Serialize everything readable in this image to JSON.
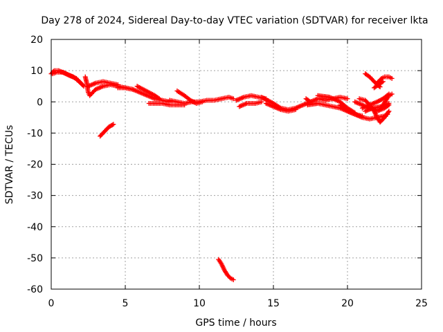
{
  "chart_data": {
    "type": "scatter",
    "title": "Day 278 of 2024, Sidereal Day-to-day VTEC variation (SDTVAR) for receiver lkta",
    "xlabel": "GPS time / hours",
    "ylabel": "SDTVAR / TECUs",
    "xlim": [
      0,
      25
    ],
    "ylim": [
      -60,
      20
    ],
    "xticks": [
      0,
      5,
      10,
      15,
      20,
      25
    ],
    "yticks": [
      20,
      10,
      0,
      -10,
      -20,
      -30,
      -40,
      -50,
      -60
    ],
    "grid": true,
    "marker": "+",
    "series": [
      {
        "name": "SDTVAR",
        "color": "#ff0000",
        "tracks": [
          [
            [
              0.0,
              9.0
            ],
            [
              0.2,
              10.0
            ],
            [
              0.5,
              10.0
            ],
            [
              1.0,
              9.0
            ],
            [
              1.5,
              8.0
            ],
            [
              2.0,
              6.0
            ],
            [
              2.2,
              5.0
            ]
          ],
          [
            [
              0.1,
              9.0
            ],
            [
              0.4,
              9.5
            ],
            [
              0.8,
              9.5
            ],
            [
              1.2,
              8.5
            ],
            [
              1.7,
              7.5
            ],
            [
              2.1,
              5.5
            ]
          ],
          [
            [
              2.3,
              8.0
            ],
            [
              2.4,
              6.0
            ],
            [
              2.5,
              3.0
            ],
            [
              2.6,
              2.0
            ],
            [
              3.0,
              4.0
            ],
            [
              3.5,
              5.0
            ],
            [
              4.0,
              5.5
            ],
            [
              4.5,
              5.0
            ],
            [
              5.0,
              4.5
            ],
            [
              5.5,
              4.0
            ]
          ],
          [
            [
              2.5,
              5.0
            ],
            [
              3.0,
              6.0
            ],
            [
              3.5,
              6.5
            ],
            [
              4.0,
              6.0
            ],
            [
              4.5,
              5.5
            ]
          ],
          [
            [
              3.3,
              -11.0
            ],
            [
              3.6,
              -9.5
            ],
            [
              3.9,
              -8.0
            ],
            [
              4.2,
              -7.2
            ]
          ],
          [
            [
              4.5,
              4.5
            ],
            [
              5.0,
              4.5
            ],
            [
              5.5,
              4.0
            ],
            [
              6.0,
              3.0
            ],
            [
              6.5,
              2.0
            ],
            [
              7.0,
              1.0
            ],
            [
              7.5,
              0.5
            ],
            [
              8.0,
              0.0
            ]
          ],
          [
            [
              5.8,
              5.0
            ],
            [
              6.2,
              4.0
            ],
            [
              6.6,
              3.0
            ],
            [
              7.0,
              2.0
            ],
            [
              7.3,
              1.0
            ]
          ],
          [
            [
              6.6,
              -0.5
            ],
            [
              7.0,
              -0.5
            ],
            [
              7.5,
              -0.5
            ],
            [
              8.0,
              -1.0
            ],
            [
              8.5,
              -1.0
            ],
            [
              9.0,
              -1.0
            ]
          ],
          [
            [
              8.0,
              0.5
            ],
            [
              8.5,
              0.0
            ],
            [
              9.0,
              -0.5
            ],
            [
              9.5,
              0.0
            ],
            [
              10.0,
              0.0
            ],
            [
              10.5,
              0.5
            ],
            [
              11.0,
              0.5
            ],
            [
              11.5,
              1.0
            ],
            [
              12.0,
              1.5
            ],
            [
              12.3,
              1.0
            ]
          ],
          [
            [
              8.5,
              3.5
            ],
            [
              9.0,
              2.0
            ],
            [
              9.4,
              0.5
            ],
            [
              9.8,
              -0.5
            ],
            [
              10.2,
              0.0
            ]
          ],
          [
            [
              11.3,
              -50.5
            ],
            [
              11.5,
              -52.0
            ],
            [
              11.7,
              -54.0
            ],
            [
              11.9,
              -55.5
            ],
            [
              12.1,
              -56.5
            ],
            [
              12.3,
              -57.0
            ]
          ],
          [
            [
              12.5,
              0.5
            ],
            [
              13.0,
              1.5
            ],
            [
              13.5,
              2.0
            ],
            [
              14.0,
              1.5
            ],
            [
              14.5,
              1.0
            ]
          ],
          [
            [
              12.7,
              -1.5
            ],
            [
              13.2,
              -0.5
            ],
            [
              13.8,
              -0.5
            ],
            [
              14.2,
              0.0
            ]
          ],
          [
            [
              14.2,
              1.5
            ],
            [
              14.6,
              0.5
            ],
            [
              15.0,
              -0.5
            ],
            [
              15.5,
              -2.0
            ],
            [
              16.0,
              -2.5
            ],
            [
              16.5,
              -2.0
            ],
            [
              17.0,
              -1.0
            ],
            [
              17.5,
              0.0
            ]
          ],
          [
            [
              14.5,
              -0.5
            ],
            [
              15.0,
              -1.5
            ],
            [
              15.5,
              -2.5
            ],
            [
              16.0,
              -3.0
            ],
            [
              16.5,
              -2.5
            ]
          ],
          [
            [
              17.2,
              1.0
            ],
            [
              17.5,
              0.0
            ],
            [
              18.0,
              1.0
            ],
            [
              18.5,
              0.5
            ],
            [
              19.0,
              1.0
            ],
            [
              19.5,
              1.5
            ],
            [
              20.0,
              1.0
            ]
          ],
          [
            [
              17.3,
              -1.0
            ],
            [
              18.0,
              -0.5
            ],
            [
              18.5,
              -1.0
            ],
            [
              19.0,
              -1.5
            ],
            [
              19.5,
              -2.0
            ],
            [
              20.0,
              -3.0
            ],
            [
              20.5,
              -4.0
            ],
            [
              21.0,
              -4.5
            ]
          ],
          [
            [
              18.0,
              2.0
            ],
            [
              18.8,
              1.5
            ],
            [
              19.5,
              0.0
            ],
            [
              20.0,
              -2.0
            ],
            [
              20.5,
              -3.5
            ]
          ],
          [
            [
              19.5,
              -1.0
            ],
            [
              20.0,
              -3.0
            ],
            [
              20.5,
              -4.0
            ],
            [
              21.0,
              -5.0
            ],
            [
              21.5,
              -5.5
            ],
            [
              22.0,
              -5.0
            ],
            [
              22.5,
              -4.5
            ],
            [
              22.7,
              -4.0
            ]
          ],
          [
            [
              20.5,
              0.0
            ],
            [
              21.0,
              -1.0
            ],
            [
              21.5,
              -2.0
            ],
            [
              22.0,
              -3.0
            ],
            [
              22.5,
              -2.0
            ],
            [
              22.8,
              -1.0
            ]
          ],
          [
            [
              20.8,
              1.0
            ],
            [
              21.2,
              0.5
            ],
            [
              21.5,
              -1.0
            ],
            [
              21.8,
              -3.0
            ],
            [
              22.0,
              -5.0
            ],
            [
              22.2,
              -6.5
            ],
            [
              22.5,
              -5.0
            ],
            [
              22.8,
              -3.0
            ]
          ],
          [
            [
              21.0,
              -2.0
            ],
            [
              21.5,
              -1.0
            ],
            [
              22.0,
              0.0
            ],
            [
              22.4,
              1.0
            ],
            [
              22.8,
              2.5
            ]
          ],
          [
            [
              21.2,
              -3.0
            ],
            [
              21.7,
              -2.0
            ],
            [
              22.3,
              -1.5
            ],
            [
              22.8,
              -0.5
            ]
          ],
          [
            [
              21.2,
              9.0
            ],
            [
              21.5,
              8.0
            ],
            [
              21.8,
              6.5
            ],
            [
              22.0,
              5.5
            ],
            [
              22.2,
              4.8
            ]
          ],
          [
            [
              22.0,
              6.0
            ],
            [
              22.3,
              7.5
            ],
            [
              22.5,
              8.0
            ],
            [
              22.8,
              8.0
            ],
            [
              23.0,
              7.5
            ]
          ],
          [
            [
              21.8,
              4.5
            ],
            [
              22.1,
              5.5
            ],
            [
              22.4,
              6.5
            ]
          ],
          [
            [
              22.4,
              -1.0
            ],
            [
              22.6,
              0.5
            ],
            [
              22.8,
              2.0
            ],
            [
              23.0,
              2.5
            ]
          ]
        ]
      }
    ]
  }
}
